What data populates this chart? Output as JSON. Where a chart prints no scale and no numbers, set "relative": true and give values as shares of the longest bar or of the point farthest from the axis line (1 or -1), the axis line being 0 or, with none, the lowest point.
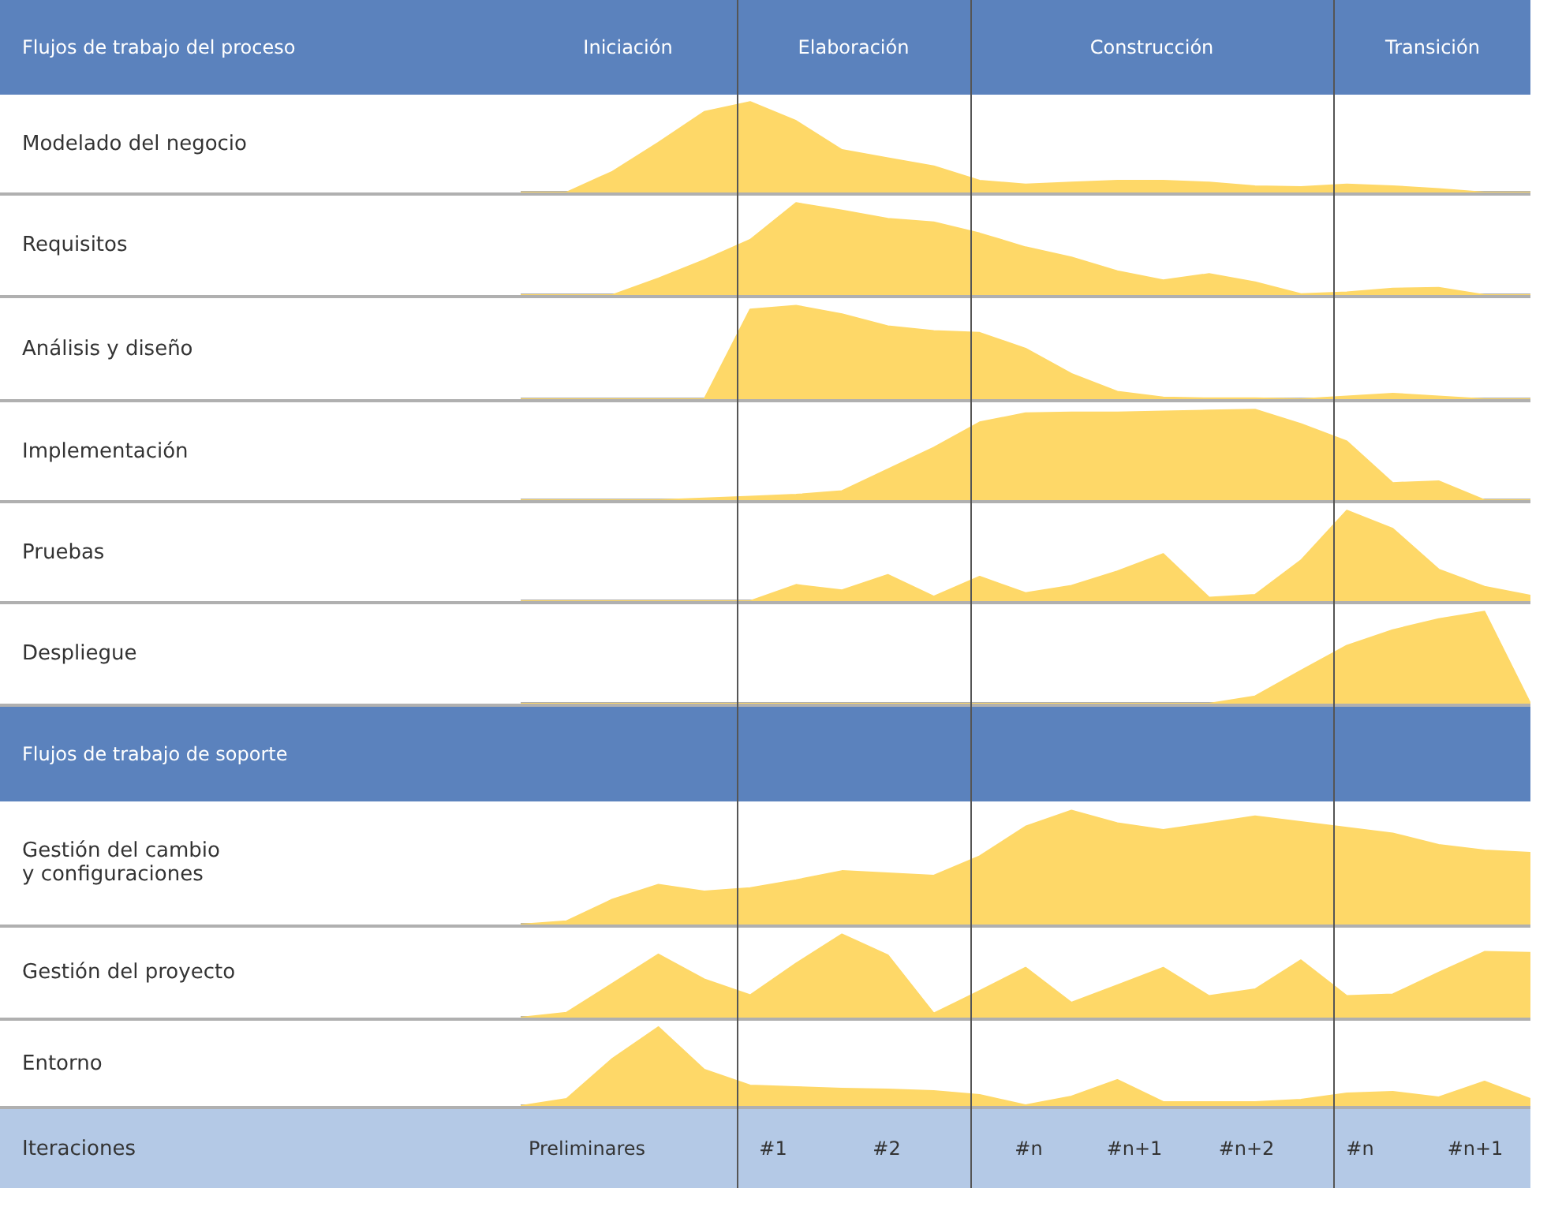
{
  "chart_data": [
    {
      "type": "other",
      "title": "Flujos de trabajo del proceso",
      "annotations": [
        "Iniciación",
        "Elaboración",
        "Construcción",
        "Transición"
      ]
    },
    {
      "type": "area",
      "ylabel": "Modelado del negocio",
      "relative": true,
      "color": "#fed868",
      "categories": [
        null,
        null,
        null,
        null,
        null,
        null,
        null,
        null,
        null,
        null,
        null,
        null,
        null,
        null,
        null,
        null,
        null,
        null,
        null,
        null,
        null,
        null,
        null
      ],
      "values": [
        0,
        0,
        0.23,
        0.55,
        0.89,
        1,
        0.79,
        0.47,
        0.38,
        0.29,
        0.13,
        0.09,
        0.11,
        0.13,
        0.13,
        0.11,
        0.07,
        0.06,
        0.09,
        0.07,
        0.04,
        0,
        0
      ]
    },
    {
      "type": "area",
      "ylabel": "Requisitos",
      "relative": true,
      "color": "#fed868",
      "categories": [
        null,
        null,
        null,
        null,
        null,
        null,
        null,
        null,
        null,
        null,
        null,
        null,
        null,
        null,
        null,
        null,
        null,
        null,
        null,
        null,
        null,
        null,
        null
      ],
      "values": [
        0,
        0,
        0,
        0.18,
        0.38,
        0.6,
        1,
        0.92,
        0.83,
        0.79,
        0.67,
        0.52,
        0.41,
        0.26,
        0.16,
        0.23,
        0.14,
        0.01,
        0.03,
        0.07,
        0.08,
        0,
        0
      ]
    },
    {
      "type": "area",
      "ylabel": "Análisis y diseño",
      "relative": true,
      "color": "#fed868",
      "categories": [
        null,
        null,
        null,
        null,
        null,
        null,
        null,
        null,
        null,
        null,
        null,
        null,
        null,
        null,
        null,
        null,
        null,
        null,
        null,
        null,
        null,
        null,
        null
      ],
      "values": [
        0,
        0,
        0,
        0,
        0,
        0.96,
        1,
        0.91,
        0.78,
        0.73,
        0.71,
        0.54,
        0.27,
        0.08,
        0.02,
        0.01,
        0.01,
        0,
        0.03,
        0.06,
        0.03,
        0,
        0
      ]
    },
    {
      "type": "area",
      "ylabel": "Implementación",
      "relative": true,
      "color": "#fed868",
      "categories": [
        null,
        null,
        null,
        null,
        null,
        null,
        null,
        null,
        null,
        null,
        null,
        null,
        null,
        null,
        null,
        null,
        null,
        null,
        null,
        null,
        null,
        null,
        null
      ],
      "values": [
        0,
        0,
        0,
        0,
        0.02,
        0.04,
        0.06,
        0.1,
        0.34,
        0.58,
        0.86,
        0.96,
        0.97,
        0.97,
        0.98,
        0.99,
        1,
        0.84,
        0.65,
        0.19,
        0.21,
        0,
        0
      ]
    },
    {
      "type": "area",
      "ylabel": "Pruebas",
      "relative": true,
      "color": "#fed868",
      "categories": [
        null,
        null,
        null,
        null,
        null,
        null,
        null,
        null,
        null,
        null,
        null,
        null,
        null,
        null,
        null,
        null,
        null,
        null,
        null,
        null,
        null,
        null,
        null
      ],
      "values": [
        0,
        0,
        0,
        0,
        0,
        0,
        0.18,
        0.12,
        0.29,
        0.05,
        0.27,
        0.09,
        0.17,
        0.33,
        0.52,
        0.04,
        0.07,
        0.45,
        1,
        0.8,
        0.35,
        0.16,
        0.06
      ]
    },
    {
      "type": "area",
      "ylabel": "Despliegue",
      "relative": true,
      "color": "#fed868",
      "categories": [
        null,
        null,
        null,
        null,
        null,
        null,
        null,
        null,
        null,
        null,
        null,
        null,
        null,
        null,
        null,
        null,
        null,
        null,
        null,
        null,
        null,
        null,
        null
      ],
      "values": [
        0,
        0,
        0,
        0,
        0,
        0,
        0,
        0,
        0,
        0,
        0,
        0,
        0,
        0,
        0,
        0,
        0.08,
        0.36,
        0.63,
        0.8,
        0.92,
        1,
        0
      ]
    },
    {
      "type": "other",
      "title": "Flujos de trabajo de soporte"
    },
    {
      "type": "area",
      "ylabel": "Gestión del cambio\ny configuraciones",
      "relative": true,
      "color": "#fed868",
      "categories": [
        null,
        null,
        null,
        null,
        null,
        null,
        null,
        null,
        null,
        null,
        null,
        null,
        null,
        null,
        null,
        null,
        null,
        null,
        null,
        null,
        null,
        null,
        null
      ],
      "values": [
        0,
        0.03,
        0.22,
        0.35,
        0.29,
        0.32,
        0.39,
        0.47,
        0.45,
        0.43,
        0.6,
        0.86,
        1,
        0.89,
        0.83,
        0.89,
        0.95,
        0.9,
        0.85,
        0.8,
        0.7,
        0.65,
        0.63
      ]
    },
    {
      "type": "area",
      "ylabel": "Gestión del proyecto",
      "relative": true,
      "color": "#fed868",
      "categories": [
        null,
        null,
        null,
        null,
        null,
        null,
        null,
        null,
        null,
        null,
        null,
        null,
        null,
        null,
        null,
        null,
        null,
        null,
        null,
        null,
        null,
        null,
        null
      ],
      "values": [
        0,
        0.06,
        0.41,
        0.76,
        0.46,
        0.27,
        0.65,
        1,
        0.75,
        0.05,
        0.32,
        0.6,
        0.18,
        0.39,
        0.6,
        0.26,
        0.34,
        0.69,
        0.26,
        0.28,
        0.54,
        0.79,
        0.78
      ]
    },
    {
      "type": "area",
      "ylabel": "Entorno",
      "relative": true,
      "color": "#fed868",
      "categories": [
        null,
        null,
        null,
        null,
        null,
        null,
        null,
        null,
        null,
        null,
        null,
        null,
        null,
        null,
        null,
        null,
        null,
        null,
        null,
        null,
        null,
        null,
        null
      ],
      "values": [
        0,
        0.09,
        0.6,
        1,
        0.46,
        0.26,
        0.24,
        0.22,
        0.21,
        0.19,
        0.14,
        0.01,
        0.12,
        0.33,
        0.05,
        0.05,
        0.05,
        0.08,
        0.16,
        0.18,
        0.11,
        0.31,
        0.09
      ]
    },
    {
      "type": "other",
      "title": "Iteraciones",
      "annotations": [
        "Preliminares",
        "#1",
        "#2",
        "#n",
        "#n+1",
        "#n+2",
        "#n",
        "#n+1"
      ]
    }
  ]
}
